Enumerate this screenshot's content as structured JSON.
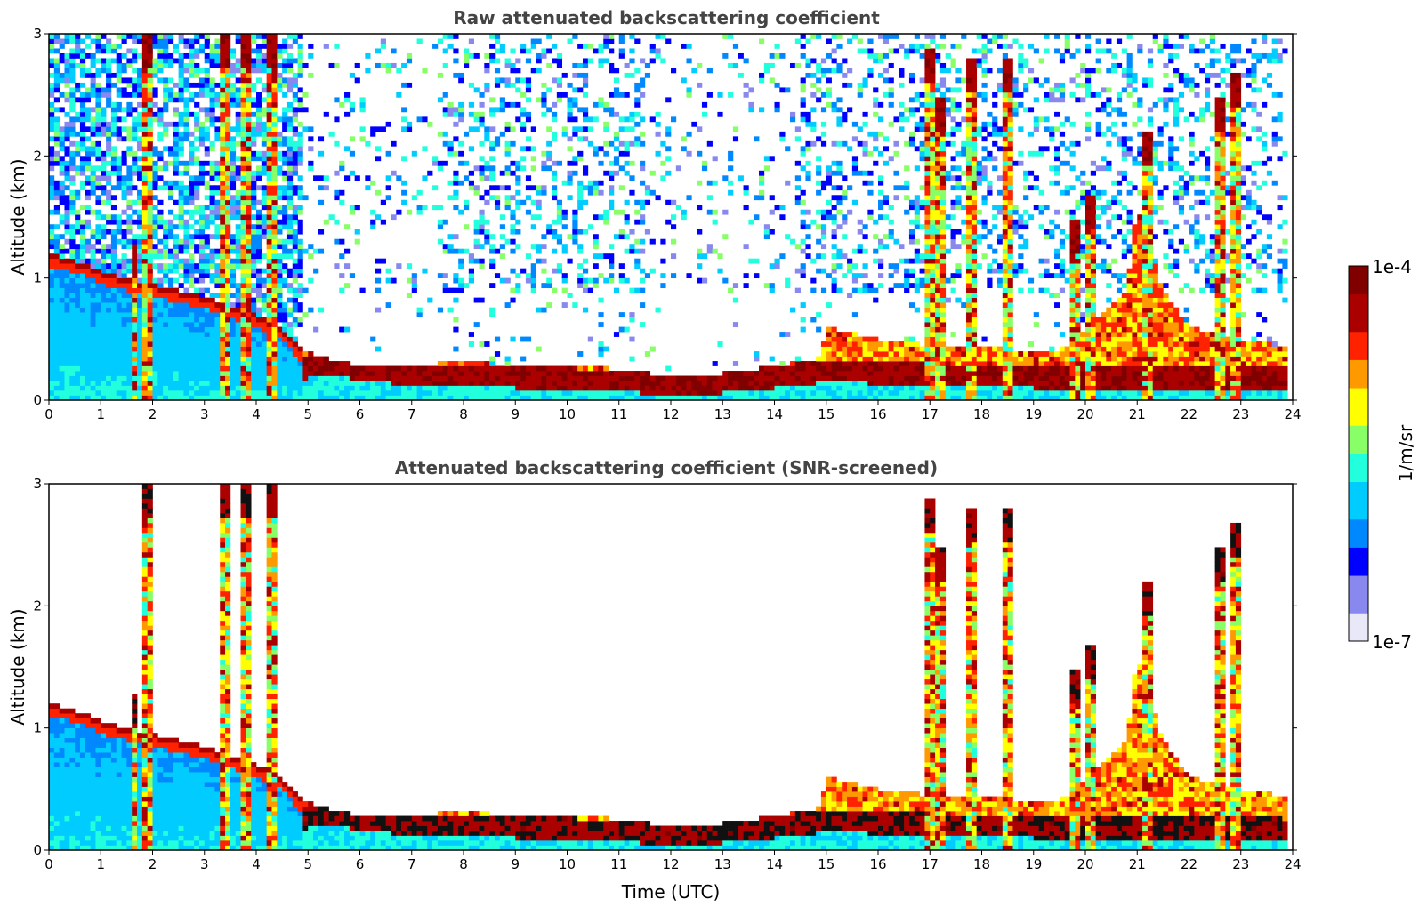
{
  "chart_data": [
    {
      "type": "heatmap",
      "title": "Raw attenuated backscattering coefficient",
      "xlabel": "",
      "ylabel": "Altitude (km)",
      "xlim": [
        0,
        24
      ],
      "ylim": [
        0,
        3
      ],
      "x_ticks": [
        "0",
        "1",
        "2",
        "3",
        "4",
        "5",
        "6",
        "7",
        "8",
        "9",
        "10",
        "11",
        "12",
        "13",
        "14",
        "15",
        "16",
        "17",
        "18",
        "19",
        "20",
        "21",
        "22",
        "23",
        "24"
      ],
      "y_ticks": [
        "0",
        "1",
        "2",
        "3"
      ],
      "screening": "none (raw, noisy background)",
      "features": {
        "boundary_layer_top_km": [
          {
            "t": 0,
            "h": 1.2
          },
          {
            "t": 0.7,
            "h": 1.12
          },
          {
            "t": 1,
            "h": 1.05
          },
          {
            "t": 2,
            "h": 0.95
          },
          {
            "t": 3,
            "h": 0.85
          },
          {
            "t": 4,
            "h": 0.7
          },
          {
            "t": 4.5,
            "h": 0.6
          },
          {
            "t": 4.9,
            "h": 0.4
          },
          {
            "t": 6,
            "h": 0.28
          },
          {
            "t": 7,
            "h": 0.28
          },
          {
            "t": 8,
            "h": 0.32
          },
          {
            "t": 9,
            "h": 0.28
          },
          {
            "t": 10,
            "h": 0.3
          },
          {
            "t": 11,
            "h": 0.25
          },
          {
            "t": 12,
            "h": 0.2
          },
          {
            "t": 13,
            "h": 0.22
          },
          {
            "t": 14,
            "h": 0.28
          },
          {
            "t": 14.9,
            "h": 0.35
          },
          {
            "t": 15,
            "h": 0.6
          },
          {
            "t": 16,
            "h": 0.5
          },
          {
            "t": 17,
            "h": 0.45
          },
          {
            "t": 18,
            "h": 0.45
          },
          {
            "t": 19,
            "h": 0.4
          },
          {
            "t": 19.5,
            "h": 0.4
          },
          {
            "t": 20,
            "h": 0.6
          },
          {
            "t": 20.8,
            "h": 0.9
          },
          {
            "t": 21,
            "h": 1.6
          },
          {
            "t": 21.5,
            "h": 0.9
          },
          {
            "t": 22,
            "h": 0.6
          },
          {
            "t": 23,
            "h": 0.5
          },
          {
            "t": 23.8,
            "h": 0.45
          }
        ],
        "cloud_layer_bottom_km": [
          {
            "t": 0,
            "h": 0.1
          },
          {
            "t": 4.9,
            "h": 0.12
          },
          {
            "t": 5,
            "h": 0.22
          },
          {
            "t": 7,
            "h": 0.12
          },
          {
            "t": 9,
            "h": 0.1
          },
          {
            "t": 12,
            "h": 0.05
          },
          {
            "t": 13,
            "h": 0.06
          },
          {
            "t": 14,
            "h": 0.1
          },
          {
            "t": 15,
            "h": 0.15
          },
          {
            "t": 19,
            "h": 0.1
          },
          {
            "t": 23.8,
            "h": 0.08
          }
        ],
        "plumes": [
          {
            "t": 1.65,
            "top": 1.3
          },
          {
            "t": 1.9,
            "top": 3.0
          },
          {
            "t": 3.4,
            "top": 3.0
          },
          {
            "t": 3.8,
            "top": 3.0
          },
          {
            "t": 4.3,
            "top": 3.0
          },
          {
            "t": 17.0,
            "top": 2.9
          },
          {
            "t": 17.2,
            "top": 2.5
          },
          {
            "t": 17.8,
            "top": 2.8
          },
          {
            "t": 18.5,
            "top": 2.8
          },
          {
            "t": 19.8,
            "top": 1.5
          },
          {
            "t": 20.1,
            "top": 1.7
          },
          {
            "t": 21.2,
            "top": 2.2
          },
          {
            "t": 22.6,
            "top": 2.5
          },
          {
            "t": 22.9,
            "top": 2.7
          }
        ]
      }
    },
    {
      "type": "heatmap",
      "title": "Attenuated backscattering coefficient (SNR-screened)",
      "xlabel": "Time (UTC)",
      "ylabel": "Altitude (km)",
      "xlim": [
        0,
        24
      ],
      "ylim": [
        0,
        3
      ],
      "x_ticks": [
        "0",
        "1",
        "2",
        "3",
        "4",
        "5",
        "6",
        "7",
        "8",
        "9",
        "10",
        "11",
        "12",
        "13",
        "14",
        "15",
        "16",
        "17",
        "18",
        "19",
        "20",
        "21",
        "22",
        "23",
        "24"
      ],
      "y_ticks": [
        "0",
        "1",
        "2",
        "3"
      ],
      "screening": "low SNR pixels removed (white)"
    }
  ],
  "colorbar": {
    "scale": "log",
    "label": "1/m/sr",
    "min_label": "1e-7",
    "max_label": "1e-4",
    "colors": [
      "#e8e8f8",
      "#8888ee",
      "#0000ff",
      "#0088ff",
      "#00ccff",
      "#22ffdd",
      "#88ff66",
      "#ffff00",
      "#ff9900",
      "#ff2200",
      "#aa0000",
      "#800000"
    ]
  }
}
